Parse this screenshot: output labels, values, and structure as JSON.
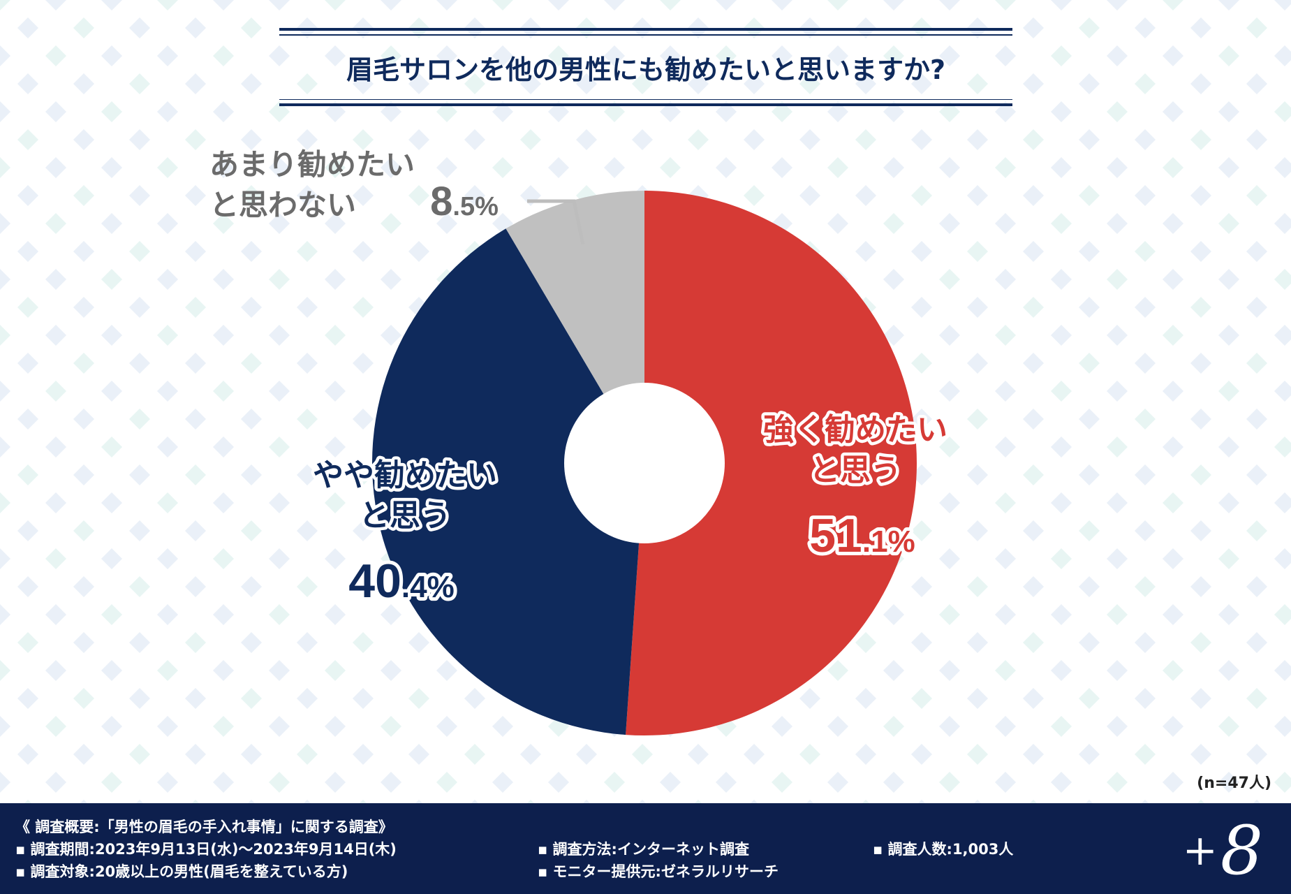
{
  "chart_data": {
    "type": "pie",
    "title": "眉毛サロンを他の男性にも勧めたいと思いますか?",
    "sample_note": "(n=47人)",
    "slices": [
      {
        "label_lines": [
          "強く勧めたい",
          "と思う"
        ],
        "value": 51.1,
        "display_int": "51",
        "display_dec": ".1%",
        "color": "#d63a35",
        "label_color": "#d63a35"
      },
      {
        "label_lines": [
          "やや勧めたい",
          "と思う"
        ],
        "value": 40.4,
        "display_int": "40",
        "display_dec": ".4%",
        "color": "#0f2a5c",
        "label_color": "#0f2a5c"
      },
      {
        "label_lines": [
          "あまり勧めたい",
          "と思わない"
        ],
        "value": 8.5,
        "display_int": "8",
        "display_dec": ".5%",
        "color": "#c0c0c0",
        "label_color": "#6b6b6b"
      }
    ]
  },
  "footer": {
    "summary": "《 調査概要:「男性の眉毛の手入れ事情」に関する調査》",
    "period": "▪ 調査期間:2023年9月13日(水)〜2023年9月14日(木)",
    "target": "▪ 調査対象:20歳以上の男性(眉毛を整えている方)",
    "method": "▪ 調査方法:インターネット調査",
    "provider": "▪ モニター提供元:ゼネラルリサーチ",
    "count": "▪ 調査人数:1,003人",
    "logo_plus": "+",
    "logo_eight": "8"
  }
}
